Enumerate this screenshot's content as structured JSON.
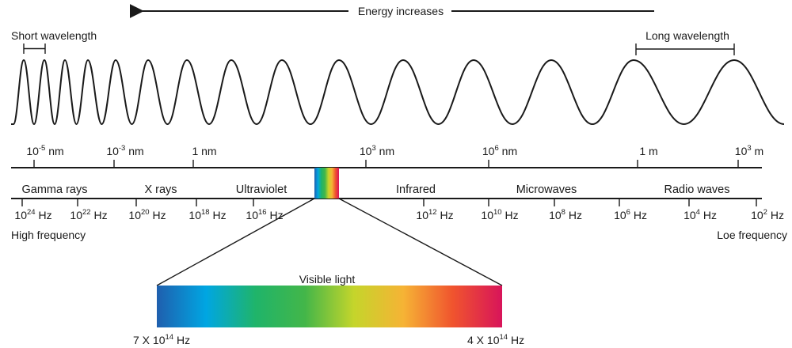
{
  "energy_label": "Energy increases",
  "short_wavelength": "Short wavelength",
  "long_wavelength": "Long wavelength",
  "wavelength_ticks": [
    {
      "base": "10",
      "exp": "-5",
      "unit": " nm"
    },
    {
      "base": "10",
      "exp": "-3",
      "unit": " nm"
    },
    {
      "base": "1 nm",
      "exp": "",
      "unit": ""
    },
    {
      "base": "10",
      "exp": "3",
      "unit": " nm"
    },
    {
      "base": "10",
      "exp": "6",
      "unit": " nm"
    },
    {
      "base": "1 m",
      "exp": "",
      "unit": ""
    },
    {
      "base": "10",
      "exp": "3",
      "unit": " m"
    }
  ],
  "bands": [
    "Gamma rays",
    "X rays",
    "Ultraviolet",
    "Infrared",
    "Microwaves",
    "Radio waves"
  ],
  "frequency_ticks": [
    {
      "base": "10",
      "exp": "24",
      "unit": " Hz"
    },
    {
      "base": "10",
      "exp": "22",
      "unit": " Hz"
    },
    {
      "base": "10",
      "exp": "20",
      "unit": " Hz"
    },
    {
      "base": "10",
      "exp": "18",
      "unit": " Hz"
    },
    {
      "base": "10",
      "exp": "16",
      "unit": " Hz"
    },
    {
      "base": "10",
      "exp": "12",
      "unit": " Hz"
    },
    {
      "base": "10",
      "exp": "10",
      "unit": " Hz"
    },
    {
      "base": "10",
      "exp": "8",
      "unit": " Hz"
    },
    {
      "base": "10",
      "exp": "6",
      "unit": " Hz"
    },
    {
      "base": "10",
      "exp": "4",
      "unit": " Hz"
    },
    {
      "base": "10",
      "exp": "2",
      "unit": " Hz"
    }
  ],
  "high_frequency": "High frequency",
  "low_frequency": "Loe frequency",
  "visible_light": {
    "title": "Visible light",
    "left_label": {
      "prefix": "7 X 10",
      "exp": "14",
      "unit": " Hz"
    },
    "right_label": {
      "prefix": "4 X 10",
      "exp": "14",
      "unit": " Hz"
    },
    "colors": [
      "#1f5fae",
      "#00a6e2",
      "#1fb46a",
      "#43b649",
      "#c5d52b",
      "#f6b335",
      "#f0542e",
      "#d8145a"
    ]
  }
}
